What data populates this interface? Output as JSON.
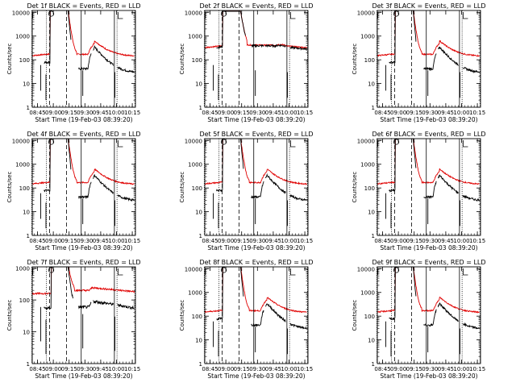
{
  "chart_data": [
    {
      "type": "line",
      "title": "Det 1f BLACK = Events, RED = LLD",
      "xlabel": "Start Time (19-Feb-03 08:39:20)",
      "ylabel": "Counts/sec",
      "profile": "normal",
      "x_ticks": [
        "08:45",
        "09:00",
        "09:15",
        "09:30",
        "09:45",
        "10:00",
        "10:15"
      ],
      "y_ticks": [
        "1",
        "10",
        "100",
        "1000",
        "10000"
      ],
      "ylim": [
        1,
        12000
      ],
      "yscale": "log",
      "series": [
        {
          "name": "Events",
          "color": "#000000"
        },
        {
          "name": "LLD",
          "color": "#e00000"
        }
      ],
      "annotations": {
        "F": true,
        "S": true,
        "N": true
      }
    },
    {
      "type": "line",
      "title": "Det 2f BLACK = Events, RED = LLD",
      "xlabel": "Start Time (19-Feb-03 08:39:20)",
      "ylabel": "Counts/sec",
      "profile": "det2",
      "x_ticks": [
        "08:45",
        "09:00",
        "09:15",
        "09:30",
        "09:45",
        "10:00",
        "10:15"
      ],
      "y_ticks": [
        "1",
        "10",
        "100",
        "1000",
        "10000"
      ],
      "ylim": [
        1,
        12000
      ],
      "yscale": "log",
      "series": [
        {
          "name": "Events",
          "color": "#000000"
        },
        {
          "name": "LLD",
          "color": "#e00000"
        }
      ],
      "annotations": {
        "F": true,
        "S": true,
        "N": true
      }
    },
    {
      "type": "line",
      "title": "Det 3f BLACK = Events, RED = LLD",
      "xlabel": "Start Time (19-Feb-03 08:39:20)",
      "ylabel": "Counts/sec",
      "profile": "normal",
      "x_ticks": [
        "08:45",
        "09:00",
        "09:15",
        "09:30",
        "09:45",
        "10:00",
        "10:15"
      ],
      "y_ticks": [
        "1",
        "10",
        "100",
        "1000",
        "10000"
      ],
      "ylim": [
        1,
        12000
      ],
      "yscale": "log",
      "series": [
        {
          "name": "Events",
          "color": "#000000"
        },
        {
          "name": "LLD",
          "color": "#e00000"
        }
      ],
      "annotations": {
        "F": true,
        "S": true,
        "N": true
      }
    },
    {
      "type": "line",
      "title": "Det 4f BLACK = Events, RED = LLD",
      "xlabel": "Start Time (19-Feb-03 08:39:20)",
      "ylabel": "Counts/sec",
      "profile": "normal",
      "x_ticks": [
        "08:45",
        "09:00",
        "09:15",
        "09:30",
        "09:45",
        "10:00",
        "10:15"
      ],
      "y_ticks": [
        "1",
        "10",
        "100",
        "1000",
        "10000"
      ],
      "ylim": [
        1,
        12000
      ],
      "yscale": "log",
      "series": [
        {
          "name": "Events",
          "color": "#000000"
        },
        {
          "name": "LLD",
          "color": "#e00000"
        }
      ],
      "annotations": {
        "F": true,
        "S": true,
        "N": true
      }
    },
    {
      "type": "line",
      "title": "Det 5f BLACK = Events, RED = LLD",
      "xlabel": "Start Time (19-Feb-03 08:39:20)",
      "ylabel": "Counts/sec",
      "profile": "normal",
      "x_ticks": [
        "08:45",
        "09:00",
        "09:15",
        "09:30",
        "09:45",
        "10:00",
        "10:15"
      ],
      "y_ticks": [
        "1",
        "10",
        "100",
        "1000",
        "10000"
      ],
      "ylim": [
        1,
        12000
      ],
      "yscale": "log",
      "series": [
        {
          "name": "Events",
          "color": "#000000"
        },
        {
          "name": "LLD",
          "color": "#e00000"
        }
      ],
      "annotations": {
        "F": true,
        "S": true,
        "N": true
      }
    },
    {
      "type": "line",
      "title": "Det 6f BLACK = Events, RED = LLD",
      "xlabel": "Start Time (19-Feb-03 08:39:20)",
      "ylabel": "Counts/sec",
      "profile": "normal",
      "x_ticks": [
        "08:45",
        "09:00",
        "09:15",
        "09:30",
        "09:45",
        "10:00",
        "10:15"
      ],
      "y_ticks": [
        "1",
        "10",
        "100",
        "1000",
        "10000"
      ],
      "ylim": [
        1,
        12000
      ],
      "yscale": "log",
      "series": [
        {
          "name": "Events",
          "color": "#000000"
        },
        {
          "name": "LLD",
          "color": "#e00000"
        }
      ],
      "annotations": {
        "F": true,
        "S": true,
        "N": true
      }
    },
    {
      "type": "line",
      "title": "Det 7f BLACK = Events, RED = LLD",
      "xlabel": "Start Time (19-Feb-03 08:39:20)",
      "ylabel": "Counts/sec",
      "profile": "det7",
      "x_ticks": [
        "08:45",
        "09:00",
        "09:15",
        "09:30",
        "09:45",
        "10:00",
        "10:15"
      ],
      "y_ticks": [
        "1",
        "10",
        "100",
        "1000"
      ],
      "ylim": [
        1,
        1100
      ],
      "yscale": "log",
      "series": [
        {
          "name": "Events",
          "color": "#000000"
        },
        {
          "name": "LLD",
          "color": "#e00000"
        }
      ],
      "annotations": {
        "F": true,
        "S": true,
        "N": true
      }
    },
    {
      "type": "line",
      "title": "Det 8f BLACK = Events, RED = LLD",
      "xlabel": "Start Time (19-Feb-03 08:39:20)",
      "ylabel": "Counts/sec",
      "profile": "normal",
      "x_ticks": [
        "08:45",
        "09:00",
        "09:15",
        "09:30",
        "09:45",
        "10:00",
        "10:15"
      ],
      "y_ticks": [
        "1",
        "10",
        "100",
        "1000",
        "10000"
      ],
      "ylim": [
        1,
        12000
      ],
      "yscale": "log",
      "series": [
        {
          "name": "Events",
          "color": "#000000"
        },
        {
          "name": "LLD",
          "color": "#e00000"
        }
      ],
      "annotations": {
        "F": true,
        "S": true,
        "N": true
      }
    },
    {
      "type": "line",
      "title": "Det 9f BLACK = Events, RED = LLD",
      "xlabel": "Start Time (19-Feb-03 08:39:20)",
      "ylabel": "Counts/sec",
      "profile": "normal",
      "x_ticks": [
        "08:45",
        "09:00",
        "09:15",
        "09:30",
        "09:45",
        "10:00",
        "10:15"
      ],
      "y_ticks": [
        "1",
        "10",
        "100",
        "1000",
        "10000"
      ],
      "ylim": [
        1,
        12000
      ],
      "yscale": "log",
      "series": [
        {
          "name": "Events",
          "color": "#000000"
        },
        {
          "name": "LLD",
          "color": "#e00000"
        }
      ],
      "annotations": {
        "F": true,
        "S": true,
        "N": true
      }
    }
  ]
}
